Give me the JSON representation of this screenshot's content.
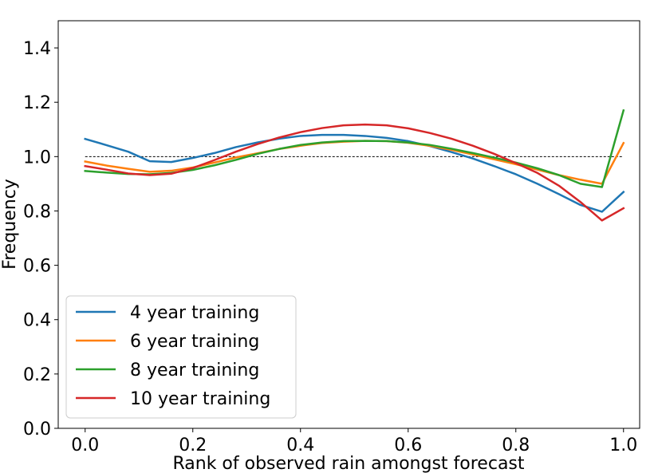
{
  "chart_data": {
    "type": "line",
    "xlabel": "Rank of observed rain amongst forecast",
    "ylabel": "Frequency",
    "xlim": [
      -0.05,
      1.03
    ],
    "ylim": [
      0.0,
      1.5
    ],
    "xticks": [
      0.0,
      0.2,
      0.4,
      0.6,
      0.8,
      1.0
    ],
    "xtick_labels": [
      "0.0",
      "0.2",
      "0.4",
      "0.6",
      "0.8",
      "1.0"
    ],
    "yticks": [
      0.0,
      0.2,
      0.4,
      0.6,
      0.8,
      1.0,
      1.2,
      1.4
    ],
    "ytick_labels": [
      "0.0",
      "0.2",
      "0.4",
      "0.6",
      "0.8",
      "1.0",
      "1.2",
      "1.4"
    ],
    "reference_line": {
      "y": 1.0,
      "style": "dashed",
      "color": "#000000"
    },
    "legend_position": "lower-left",
    "grid": false,
    "series": [
      {
        "name": "4 year training",
        "color": "#1f77b4",
        "x": [
          0.0,
          0.04,
          0.08,
          0.12,
          0.16,
          0.2,
          0.24,
          0.28,
          0.32,
          0.36,
          0.4,
          0.44,
          0.48,
          0.52,
          0.56,
          0.6,
          0.64,
          0.68,
          0.72,
          0.76,
          0.8,
          0.84,
          0.88,
          0.92,
          0.96,
          1.0
        ],
        "values": [
          1.065,
          1.042,
          1.018,
          0.983,
          0.98,
          0.995,
          1.013,
          1.035,
          1.052,
          1.066,
          1.076,
          1.08,
          1.08,
          1.076,
          1.069,
          1.057,
          1.039,
          1.017,
          0.993,
          0.965,
          0.935,
          0.9,
          0.862,
          0.822,
          0.797,
          0.87
        ]
      },
      {
        "name": "6 year training",
        "color": "#ff7f0e",
        "x": [
          0.0,
          0.04,
          0.08,
          0.12,
          0.16,
          0.2,
          0.24,
          0.28,
          0.32,
          0.36,
          0.4,
          0.44,
          0.48,
          0.52,
          0.56,
          0.6,
          0.64,
          0.68,
          0.72,
          0.76,
          0.8,
          0.84,
          0.88,
          0.92,
          0.96,
          1.0
        ],
        "values": [
          0.982,
          0.967,
          0.955,
          0.944,
          0.948,
          0.96,
          0.978,
          0.997,
          1.012,
          1.028,
          1.04,
          1.05,
          1.055,
          1.058,
          1.057,
          1.051,
          1.04,
          1.025,
          1.008,
          0.99,
          0.972,
          0.952,
          0.932,
          0.915,
          0.9,
          1.05
        ]
      },
      {
        "name": "8 year training",
        "color": "#2ca02c",
        "x": [
          0.0,
          0.04,
          0.08,
          0.12,
          0.16,
          0.2,
          0.24,
          0.28,
          0.32,
          0.36,
          0.4,
          0.44,
          0.48,
          0.52,
          0.56,
          0.6,
          0.64,
          0.68,
          0.72,
          0.76,
          0.8,
          0.84,
          0.88,
          0.92,
          0.96,
          1.0
        ],
        "values": [
          0.947,
          0.941,
          0.936,
          0.935,
          0.94,
          0.951,
          0.968,
          0.988,
          1.01,
          1.028,
          1.043,
          1.052,
          1.057,
          1.058,
          1.057,
          1.052,
          1.043,
          1.029,
          1.013,
          0.996,
          0.978,
          0.957,
          0.932,
          0.9,
          0.888,
          1.17
        ]
      },
      {
        "name": "10 year training",
        "color": "#d62728",
        "x": [
          0.0,
          0.04,
          0.08,
          0.12,
          0.16,
          0.2,
          0.24,
          0.28,
          0.32,
          0.36,
          0.4,
          0.44,
          0.48,
          0.52,
          0.56,
          0.6,
          0.64,
          0.68,
          0.72,
          0.76,
          0.8,
          0.84,
          0.88,
          0.92,
          0.96,
          1.0
        ],
        "values": [
          0.965,
          0.952,
          0.938,
          0.932,
          0.937,
          0.958,
          0.987,
          1.018,
          1.046,
          1.07,
          1.09,
          1.105,
          1.115,
          1.118,
          1.115,
          1.104,
          1.087,
          1.066,
          1.04,
          1.01,
          0.976,
          0.94,
          0.893,
          0.833,
          0.765,
          0.81
        ]
      }
    ]
  }
}
